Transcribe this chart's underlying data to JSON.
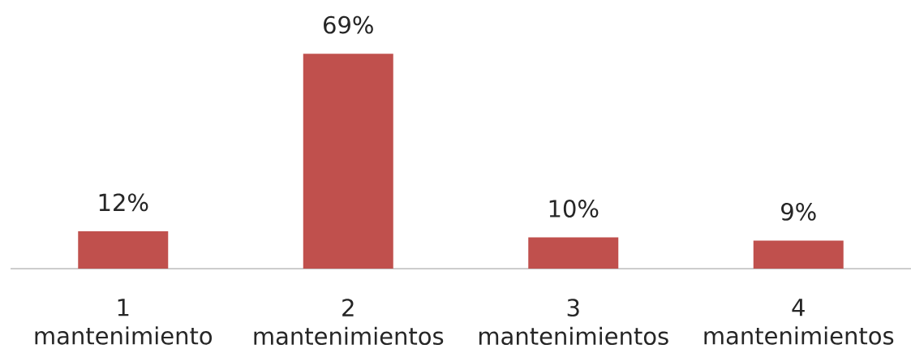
{
  "chart_data": {
    "type": "bar",
    "categories": [
      "1 mantenimiento",
      "2 mantenimientos",
      "3 mantenimientos",
      "4 mantenimientos"
    ],
    "values": [
      12,
      69,
      10,
      9
    ],
    "value_labels": [
      "12%",
      "69%",
      "10%",
      "9%"
    ],
    "color": "#c0504d",
    "tick_labels": "x"
  }
}
